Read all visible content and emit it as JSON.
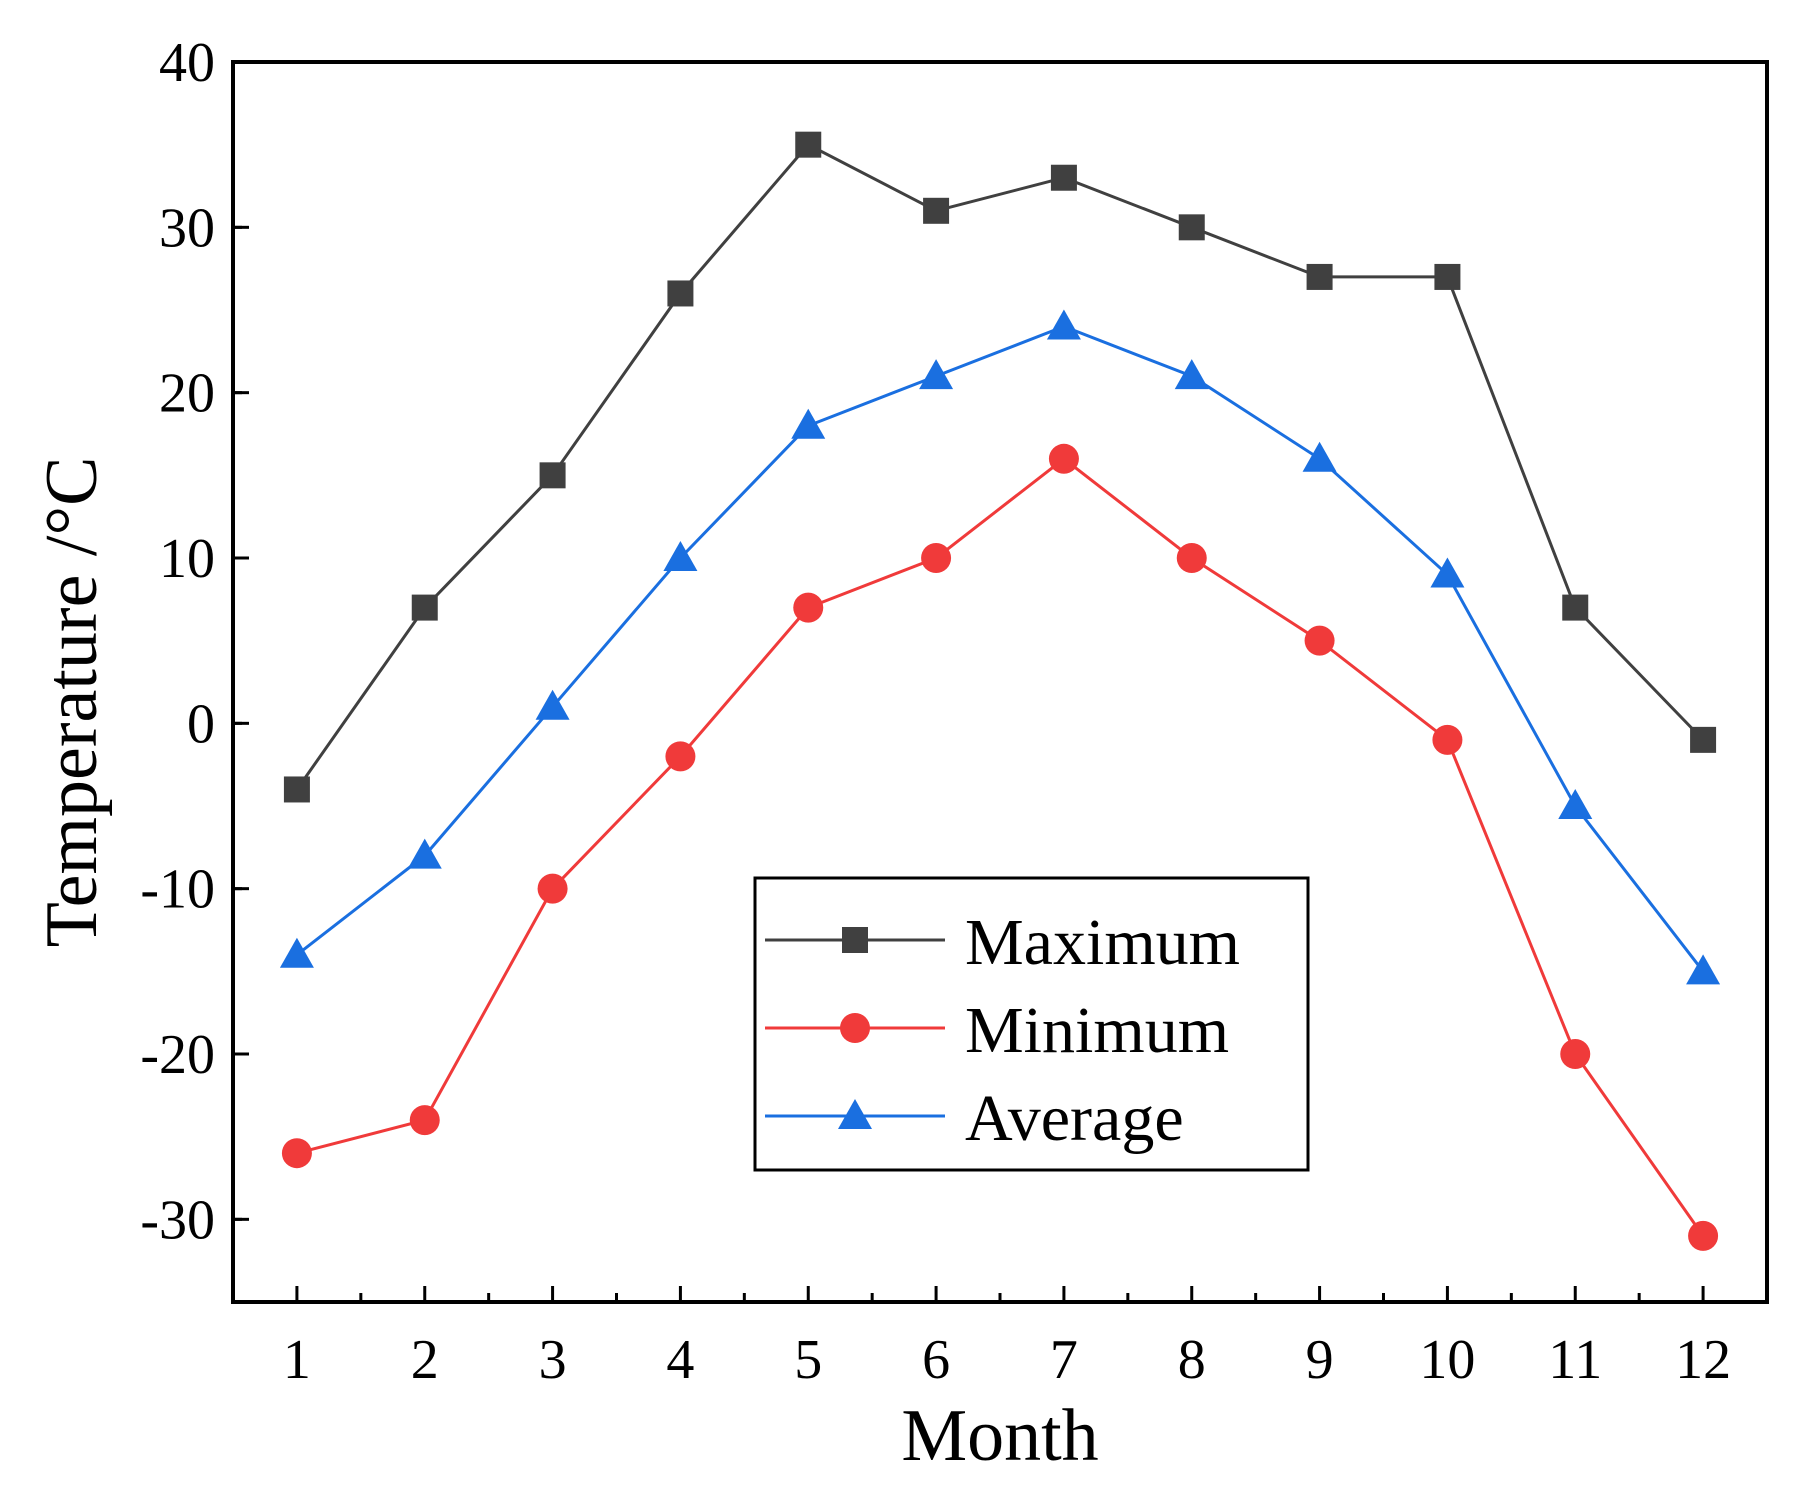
{
  "chart_data": {
    "type": "line",
    "title": "",
    "xlabel": "Month",
    "ylabel": "Temperature /°C",
    "x": [
      1,
      2,
      3,
      4,
      5,
      6,
      7,
      8,
      9,
      10,
      11,
      12
    ],
    "xlim": [
      0.5,
      12.5
    ],
    "ylim": [
      -35,
      40
    ],
    "yticks": [
      -30,
      -20,
      -10,
      0,
      10,
      20,
      30,
      40
    ],
    "grid": false,
    "legend_position": "center",
    "series": [
      {
        "name": "Maximum",
        "marker": "square",
        "color": "#404040",
        "values": [
          -4,
          7,
          15,
          26,
          35,
          31,
          33,
          30,
          27,
          27,
          7,
          -1
        ]
      },
      {
        "name": "Minimum",
        "marker": "circle",
        "color": "#f03a3a",
        "values": [
          -26,
          -24,
          -10,
          -2,
          7,
          10,
          16,
          10,
          5,
          -1,
          -20,
          -31
        ]
      },
      {
        "name": "Average",
        "marker": "triangle",
        "color": "#1a6fe0",
        "values": [
          -14,
          -8,
          1,
          10,
          18,
          21,
          24,
          21,
          16,
          9,
          -5,
          -15
        ]
      }
    ]
  }
}
